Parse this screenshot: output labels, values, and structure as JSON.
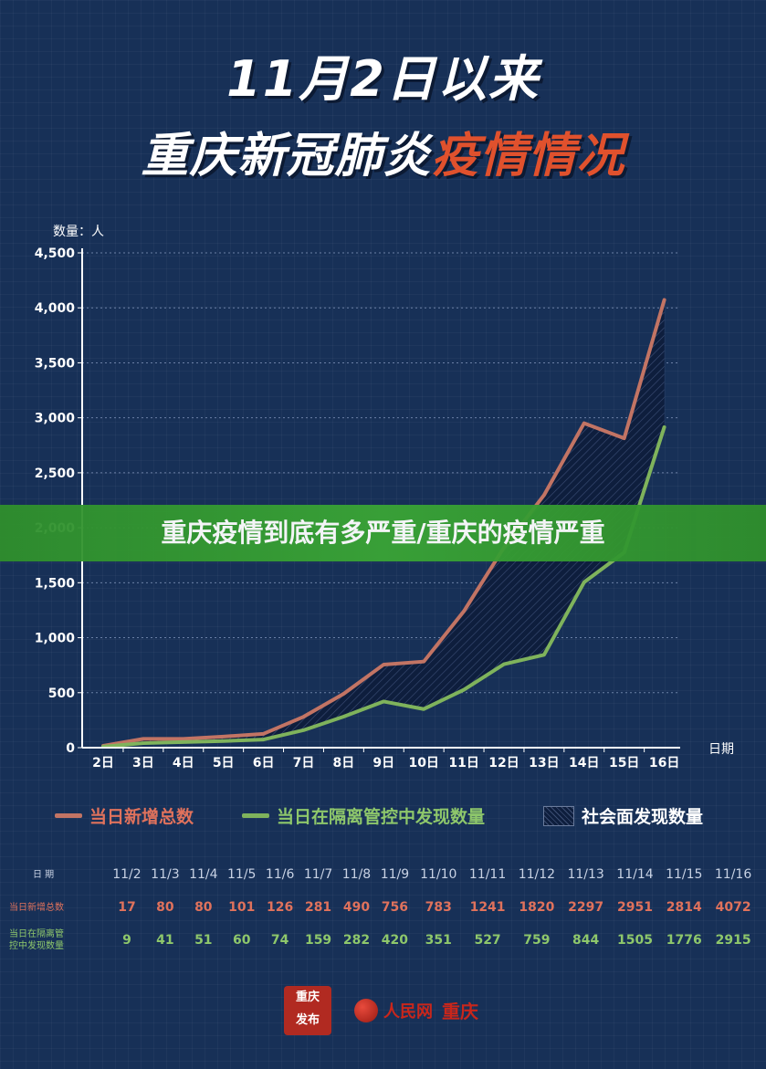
{
  "header": {
    "title_line1": "11月2日以来",
    "title_line2_a": "重庆新冠肺炎",
    "title_line2_b": "疫情情况"
  },
  "axis": {
    "y_unit_label": "数量：人",
    "x_unit_label": "日期"
  },
  "banner": {
    "text": "重庆疫情到底有多严重/重庆的疫情严重"
  },
  "legend": {
    "new_total": "当日新增总数",
    "isolation": "当日在隔离管控中发现数量",
    "community": "社会面发现数量"
  },
  "table": {
    "date_head": "日 期",
    "new_head": "当日新增总数",
    "iso_head_1": "当日在隔离管",
    "iso_head_2": "控中发现数量",
    "dates": [
      "11/2",
      "11/3",
      "11/4",
      "11/5",
      "11/6",
      "11/7",
      "11/8",
      "11/9",
      "11/10",
      "11/11",
      "11/12",
      "11/13",
      "11/14",
      "11/15",
      "11/16"
    ],
    "new_total": [
      "17",
      "80",
      "80",
      "101",
      "126",
      "281",
      "490",
      "756",
      "783",
      "1241",
      "1820",
      "2297",
      "2951",
      "2814",
      "4072"
    ],
    "isolation": [
      "9",
      "41",
      "51",
      "60",
      "74",
      "159",
      "282",
      "420",
      "351",
      "527",
      "759",
      "844",
      "1505",
      "1776",
      "2915"
    ]
  },
  "footer": {
    "seal_text_1": "重庆",
    "seal_text_2": "发布",
    "people_text": "人民网",
    "people_city": "重庆"
  },
  "colors": {
    "new_total": "#c27464",
    "isolation": "#7fb35c",
    "accent_title": "#e0512d",
    "banner": "#3aa536"
  },
  "chart_data": {
    "type": "line",
    "ylabel": "数量：人",
    "xlabel": "日期",
    "ylim": [
      0,
      4500
    ],
    "yticks": [
      "0",
      "500",
      "1,000",
      "1,500",
      "2,000",
      "2,500",
      "3,000",
      "3,500",
      "4,000",
      "4,500"
    ],
    "ytick_values": [
      0,
      500,
      1000,
      1500,
      2000,
      2500,
      3000,
      3500,
      4000,
      4500
    ],
    "categories": [
      "2日",
      "3日",
      "4日",
      "5日",
      "6日",
      "7日",
      "8日",
      "9日",
      "10日",
      "11日",
      "12日",
      "13日",
      "14日",
      "15日",
      "16日"
    ],
    "grid": true,
    "legend_position": "bottom",
    "series": [
      {
        "name": "当日新增总数",
        "values": [
          17,
          80,
          80,
          101,
          126,
          281,
          490,
          756,
          783,
          1241,
          1820,
          2297,
          2951,
          2814,
          4072
        ]
      },
      {
        "name": "当日在隔离管控中发现数量",
        "values": [
          9,
          41,
          51,
          60,
          74,
          159,
          282,
          420,
          351,
          527,
          759,
          844,
          1505,
          1776,
          2915
        ]
      }
    ],
    "area_between_name": "社会面发现数量"
  }
}
